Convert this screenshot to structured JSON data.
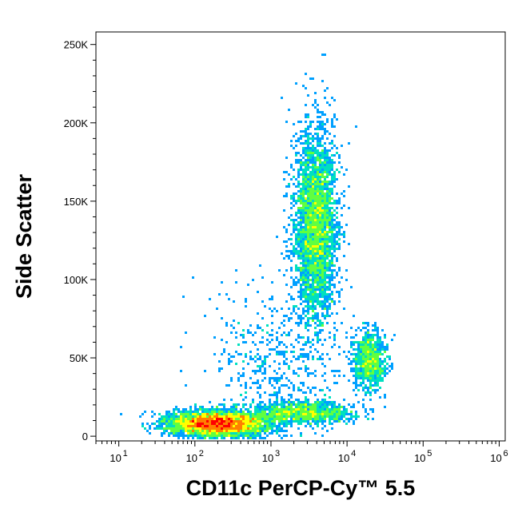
{
  "chart_data": {
    "type": "scatter",
    "style": "density-dot-plot",
    "xlabel": "CD11c PerCP-Cy™ 5.5",
    "ylabel": "Side Scatter",
    "x_scale": "log",
    "xlim": [
      5,
      1200000
    ],
    "ylim": [
      -3000,
      258000
    ],
    "x_ticks": [
      {
        "value": 10,
        "base": "10",
        "exp": "1"
      },
      {
        "value": 100,
        "base": "10",
        "exp": "2"
      },
      {
        "value": 1000,
        "base": "10",
        "exp": "3"
      },
      {
        "value": 10000,
        "base": "10",
        "exp": "4"
      },
      {
        "value": 100000,
        "base": "10",
        "exp": "5"
      },
      {
        "value": 1000000,
        "base": "10",
        "exp": "6"
      }
    ],
    "y_ticks": [
      {
        "value": 0,
        "label": "0"
      },
      {
        "value": 50000,
        "label": "50K"
      },
      {
        "value": 100000,
        "label": "100K"
      },
      {
        "value": 150000,
        "label": "150K"
      },
      {
        "value": 200000,
        "label": "200K"
      },
      {
        "value": 250000,
        "label": "250K"
      }
    ],
    "density_colors": [
      "#0000ff",
      "#00a0ff",
      "#00e0c0",
      "#60ff40",
      "#ffff00",
      "#ff8000",
      "#ff0000"
    ],
    "populations": [
      {
        "x_center": 200,
        "y_center": 8000,
        "x_spread_decades": 0.32,
        "y_spread": 4000,
        "events": 4200
      },
      {
        "x_center": 3800,
        "y_center": 135000,
        "x_spread_decades": 0.14,
        "y_spread": 30000,
        "events": 3500
      },
      {
        "x_center": 20000,
        "y_center": 48000,
        "x_spread_decades": 0.11,
        "y_spread": 9000,
        "events": 900
      },
      {
        "x_center": 2500,
        "y_center": 15000,
        "x_spread_decades": 0.35,
        "y_spread": 3500,
        "events": 1200
      },
      {
        "x_center": 1200,
        "y_center": 50000,
        "x_spread_decades": 0.45,
        "y_spread": 25000,
        "events": 500
      }
    ],
    "grid": false,
    "legend": "none"
  }
}
